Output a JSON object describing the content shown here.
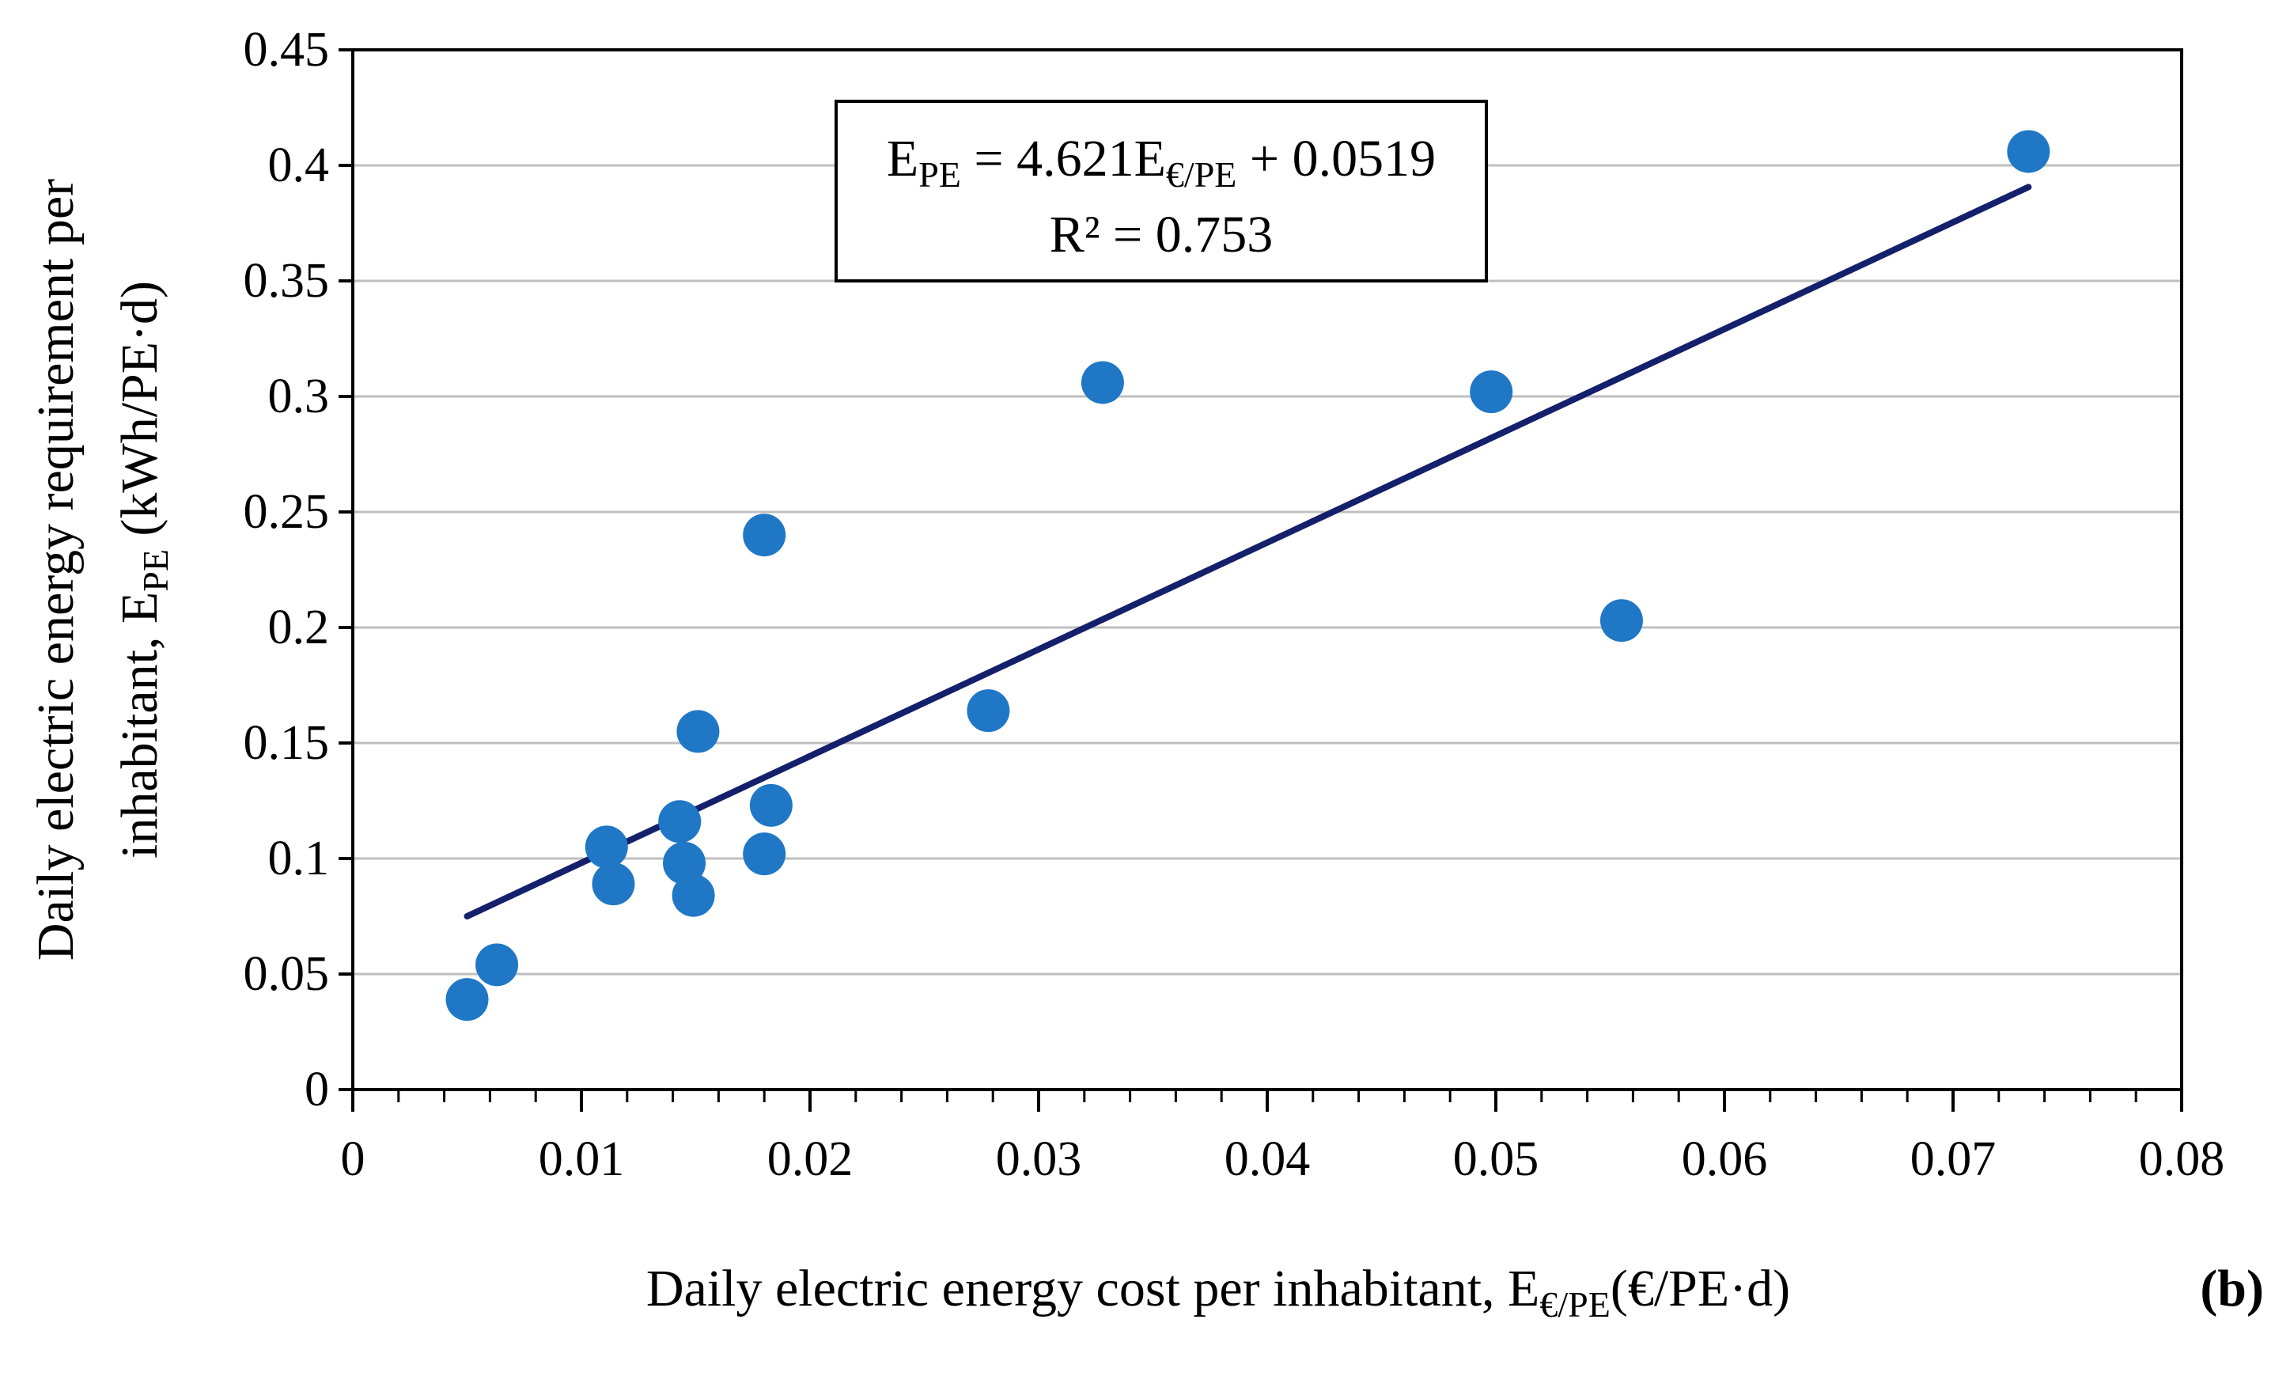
{
  "chart_data": {
    "type": "scatter",
    "panel_label": "(b)",
    "xlabel": {
      "main": "Daily electric energy cost per inhabitant, E",
      "sub": "€/PE",
      "unit": "(€/PE·d)"
    },
    "ylabel": {
      "line1": "Daily electric energy requirement per",
      "line2_main": "inhabitant, E",
      "line2_sub": "PE",
      "line2_unit": " (kWh/PE·d)"
    },
    "xlim": [
      0,
      0.08
    ],
    "ylim": [
      0,
      0.45
    ],
    "x_ticks": [
      0,
      0.01,
      0.02,
      0.03,
      0.04,
      0.05,
      0.06,
      0.07,
      0.08
    ],
    "x_tick_labels": [
      "0",
      "0.01",
      "0.02",
      "0.03",
      "0.04",
      "0.05",
      "0.06",
      "0.07",
      "0.08"
    ],
    "y_ticks": [
      0,
      0.05,
      0.1,
      0.15,
      0.2,
      0.25,
      0.3,
      0.35,
      0.4,
      0.45
    ],
    "y_tick_labels": [
      "0",
      "0.05",
      "0.1",
      "0.15",
      "0.2",
      "0.25",
      "0.3",
      "0.35",
      "0.4",
      "0.45"
    ],
    "grid": "horizontal",
    "marker_color": "#1f77c6",
    "trendline_color": "#14206b",
    "points": [
      {
        "x": 0.005,
        "y": 0.039
      },
      {
        "x": 0.0063,
        "y": 0.054
      },
      {
        "x": 0.0111,
        "y": 0.105
      },
      {
        "x": 0.0114,
        "y": 0.089
      },
      {
        "x": 0.0143,
        "y": 0.116
      },
      {
        "x": 0.0145,
        "y": 0.098
      },
      {
        "x": 0.0149,
        "y": 0.084
      },
      {
        "x": 0.0151,
        "y": 0.155
      },
      {
        "x": 0.018,
        "y": 0.24
      },
      {
        "x": 0.018,
        "y": 0.102
      },
      {
        "x": 0.0183,
        "y": 0.123
      },
      {
        "x": 0.0278,
        "y": 0.164
      },
      {
        "x": 0.0328,
        "y": 0.306
      },
      {
        "x": 0.0498,
        "y": 0.302
      },
      {
        "x": 0.0555,
        "y": 0.203
      },
      {
        "x": 0.0733,
        "y": 0.406
      }
    ],
    "trendline": {
      "slope": 4.621,
      "intercept": 0.0519,
      "x_range": [
        0.005,
        0.0733
      ]
    },
    "equation": {
      "lhs_main": "E",
      "lhs_sub": "PE",
      "middle": " = 4.621E",
      "rhs_sub": "€/PE",
      "tail": " + 0.0519",
      "r2": "R² = 0.753"
    }
  }
}
